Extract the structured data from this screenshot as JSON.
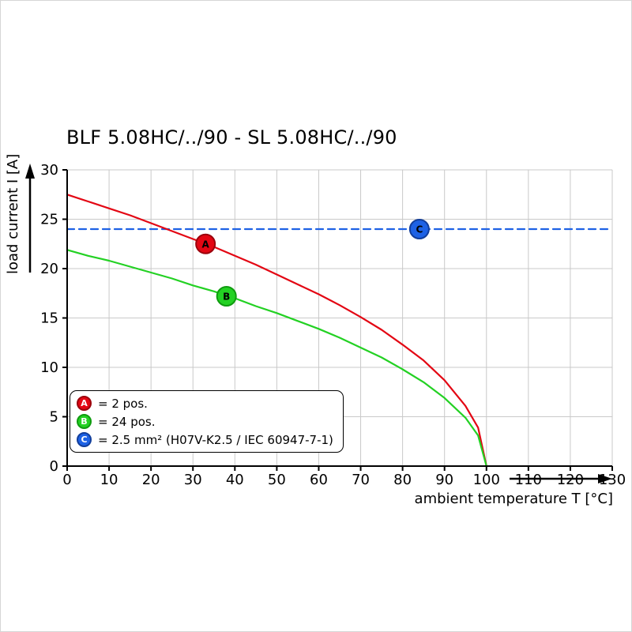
{
  "chart_data": {
    "type": "line",
    "title": "BLF 5.08HC/../90 - SL 5.08HC/../90",
    "xlabel": "ambient temperature T [°C]",
    "ylabel": "load current I [A]",
    "xlim": [
      0,
      130
    ],
    "ylim": [
      0,
      30
    ],
    "xticks": [
      0,
      10,
      20,
      30,
      40,
      50,
      60,
      70,
      80,
      90,
      100,
      110,
      120,
      130
    ],
    "yticks": [
      0,
      5,
      10,
      15,
      20,
      25,
      30
    ],
    "grid": true,
    "legend_position": "bottom-left",
    "series": [
      {
        "name": "A",
        "label": "= 2 pos.",
        "color": "#e30613",
        "edge": "#9b030c",
        "style": "solid",
        "points": [
          [
            0,
            27.5
          ],
          [
            5,
            26.8
          ],
          [
            10,
            26.1
          ],
          [
            15,
            25.4
          ],
          [
            20,
            24.6
          ],
          [
            25,
            23.8
          ],
          [
            30,
            23.0
          ],
          [
            35,
            22.2
          ],
          [
            40,
            21.3
          ],
          [
            45,
            20.4
          ],
          [
            50,
            19.4
          ],
          [
            55,
            18.4
          ],
          [
            60,
            17.4
          ],
          [
            65,
            16.3
          ],
          [
            70,
            15.1
          ],
          [
            75,
            13.8
          ],
          [
            80,
            12.3
          ],
          [
            85,
            10.7
          ],
          [
            90,
            8.7
          ],
          [
            95,
            6.1
          ],
          [
            98,
            3.9
          ],
          [
            100,
            0
          ]
        ]
      },
      {
        "name": "B",
        "label": "= 24 pos.",
        "color": "#23d123",
        "edge": "#0f9b0f",
        "style": "solid",
        "points": [
          [
            0,
            21.9
          ],
          [
            5,
            21.3
          ],
          [
            10,
            20.8
          ],
          [
            15,
            20.2
          ],
          [
            20,
            19.6
          ],
          [
            25,
            19.0
          ],
          [
            30,
            18.3
          ],
          [
            35,
            17.7
          ],
          [
            40,
            17.0
          ],
          [
            45,
            16.2
          ],
          [
            50,
            15.5
          ],
          [
            55,
            14.7
          ],
          [
            60,
            13.9
          ],
          [
            65,
            13.0
          ],
          [
            70,
            12.0
          ],
          [
            75,
            11.0
          ],
          [
            80,
            9.8
          ],
          [
            85,
            8.5
          ],
          [
            90,
            6.9
          ],
          [
            95,
            4.9
          ],
          [
            98,
            3.1
          ],
          [
            100,
            0
          ]
        ]
      },
      {
        "name": "C",
        "label": "= 2.5 mm² (H07V-K2.5 / IEC 60947-7-1)",
        "color": "#1e62e5",
        "edge": "#123e9b",
        "style": "dashed",
        "points": [
          [
            0,
            24
          ],
          [
            130,
            24
          ]
        ]
      }
    ],
    "markers": [
      {
        "series": "A",
        "x": 33,
        "y": 22.5
      },
      {
        "series": "B",
        "x": 38,
        "y": 17.2
      },
      {
        "series": "C",
        "x": 84,
        "y": 24
      }
    ]
  },
  "colors": {
    "grid": "#c9c9c9",
    "axis": "#000000",
    "background": "#ffffff"
  }
}
